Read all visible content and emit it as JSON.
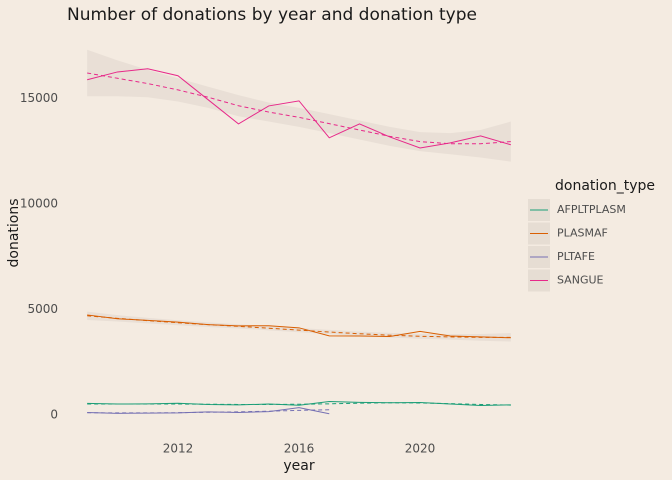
{
  "chart_data": {
    "type": "line",
    "title": "Number of donations by year and donation type",
    "x_label": "year",
    "y_label": "donations",
    "legend_title": "donation_type",
    "x": [
      2009,
      2010,
      2011,
      2012,
      2013,
      2014,
      2015,
      2016,
      2017,
      2018,
      2019,
      2020,
      2021,
      2022,
      2023
    ],
    "xlim": [
      2008.3,
      2023.7
    ],
    "xticks": [
      2012,
      2016,
      2020
    ],
    "ylim": [
      -710,
      18000
    ],
    "yticks": [
      0,
      5000,
      10000,
      15000
    ],
    "grid": false,
    "legend": "right",
    "series": [
      {
        "name": "AFPLTPLASM",
        "color": "#1b9e77",
        "values": [
          550,
          520,
          530,
          560,
          500,
          480,
          520,
          460,
          640,
          600,
          580,
          590,
          520,
          450,
          480
        ],
        "smooth": [
          520,
          520,
          520,
          520,
          510,
          500,
          500,
          510,
          530,
          560,
          580,
          570,
          540,
          500,
          470
        ]
      },
      {
        "name": "PLASMAF",
        "color": "#d95f02",
        "values": [
          4740,
          4560,
          4480,
          4400,
          4280,
          4220,
          4230,
          4130,
          3750,
          3740,
          3720,
          3960,
          3740,
          3700,
          3660
        ],
        "smooth": [
          4700,
          4580,
          4470,
          4370,
          4280,
          4200,
          4110,
          4020,
          3930,
          3850,
          3780,
          3730,
          3700,
          3680,
          3680
        ],
        "smooth_upper": [
          4900,
          4730,
          4600,
          4490,
          4390,
          4300,
          4210,
          4120,
          4030,
          3950,
          3890,
          3850,
          3830,
          3840,
          3880
        ],
        "smooth_lower": [
          4500,
          4430,
          4340,
          4250,
          4170,
          4100,
          4010,
          3920,
          3830,
          3750,
          3670,
          3610,
          3570,
          3520,
          3480
        ]
      },
      {
        "name": "PLTAFE",
        "color": "#7570b3",
        "values": [
          120,
          80,
          90,
          100,
          150,
          120,
          160,
          350,
          60,
          null,
          null,
          null,
          null,
          null,
          null
        ],
        "smooth": [
          110,
          100,
          100,
          110,
          130,
          150,
          180,
          220,
          250,
          null,
          null,
          null,
          null,
          null,
          null
        ]
      },
      {
        "name": "SANGUE",
        "color": "#e7298a",
        "values": [
          15880,
          16250,
          16400,
          16070,
          14930,
          13790,
          14640,
          14880,
          13130,
          13790,
          13170,
          12650,
          12890,
          13220,
          12800
        ],
        "smooth": [
          16200,
          15950,
          15700,
          15400,
          15050,
          14650,
          14350,
          14100,
          13800,
          13500,
          13200,
          12950,
          12850,
          12850,
          12950
        ],
        "smooth_upper": [
          17300,
          16800,
          16350,
          15950,
          15550,
          15150,
          14800,
          14550,
          14250,
          13950,
          13650,
          13400,
          13350,
          13500,
          13900
        ],
        "smooth_lower": [
          15100,
          15100,
          15050,
          14850,
          14550,
          14150,
          13900,
          13650,
          13350,
          13050,
          12750,
          12500,
          12350,
          12200,
          12000
        ]
      }
    ]
  }
}
